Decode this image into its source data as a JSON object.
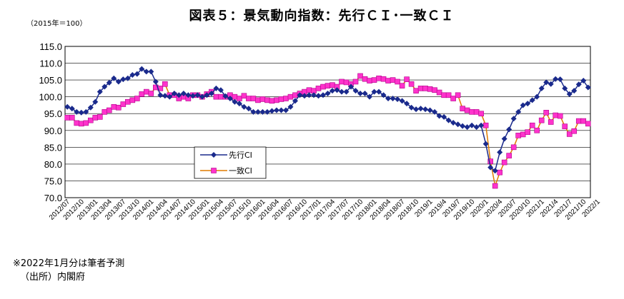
{
  "chart_data": {
    "type": "line",
    "title": "図表５：景気動向指数：先行ＣＩ･一致ＣＩ",
    "unit_note": "（2015年＝100）",
    "ylim": [
      70.0,
      115.0
    ],
    "yticks": [
      "70.0",
      "75.0",
      "80.0",
      "85.0",
      "90.0",
      "95.0",
      "100.0",
      "105.0",
      "110.0",
      "115.0"
    ],
    "xtick_labels": [
      "2012/07",
      "2012/10",
      "2013/01",
      "2013/04",
      "2013/07",
      "2013/10",
      "2014/01",
      "2014/04",
      "2014/07",
      "2014/10",
      "2015/01",
      "2015/04",
      "2015/07",
      "2015/10",
      "2016/01",
      "2016/04",
      "2016/07",
      "2016/10",
      "2017/01",
      "2017/04",
      "2017/07",
      "2017/10",
      "2018/01",
      "2018/04",
      "2018/07",
      "2018/10",
      "2019/1",
      "2019/4",
      "2019/7",
      "2019/10",
      "2020/1",
      "2020/4",
      "2020/7",
      "2020/10",
      "2021/1",
      "2021/4",
      "2021/7",
      "2021/10",
      "2022/1"
    ],
    "legend_position": "center-left",
    "series": [
      {
        "name": "先行CI",
        "color": "#1a2a8c",
        "marker": "diamond",
        "values": [
          97.0,
          96.5,
          95.5,
          95.3,
          95.5,
          96.8,
          98.5,
          101.5,
          103.0,
          104.2,
          105.5,
          104.5,
          105.2,
          105.5,
          106.5,
          106.8,
          108.3,
          107.5,
          107.5,
          104.5,
          100.5,
          100.3,
          100.0,
          101.0,
          100.5,
          101.0,
          100.5,
          100.3,
          100.5,
          100.0,
          100.5,
          101.0,
          102.5,
          102.0,
          100.2,
          99.5,
          98.5,
          98.0,
          97.0,
          96.5,
          95.5,
          95.5,
          95.5,
          95.5,
          95.8,
          96.0,
          96.0,
          96.0,
          97.0,
          98.8,
          100.5,
          100.3,
          100.5,
          100.5,
          100.3,
          100.5,
          101.0,
          101.8,
          102.0,
          101.5,
          101.5,
          103.0,
          101.8,
          101.0,
          101.0,
          100.0,
          101.5,
          101.5,
          100.5,
          99.5,
          99.5,
          99.3,
          98.8,
          98.0,
          96.8,
          96.3,
          96.5,
          96.3,
          96.0,
          95.5,
          94.3,
          94.0,
          93.0,
          92.3,
          91.8,
          91.3,
          91.0,
          91.5,
          91.0,
          91.5,
          86.0,
          79.0,
          78.0,
          83.5,
          87.5,
          90.3,
          93.5,
          95.5,
          97.5,
          98.0,
          99.0,
          100.0,
          102.5,
          104.3,
          103.8,
          105.3,
          105.2,
          102.5,
          100.8,
          101.8,
          103.7,
          104.8,
          102.8
        ]
      },
      {
        "name": "一致CI",
        "color": "#ff33cc",
        "marker": "square",
        "values": [
          93.8,
          93.8,
          92.2,
          92.0,
          92.2,
          93.0,
          93.8,
          94.0,
          95.5,
          96.0,
          97.0,
          96.8,
          97.8,
          98.5,
          99.0,
          99.5,
          100.8,
          101.5,
          101.0,
          102.8,
          102.5,
          103.8,
          100.5,
          100.5,
          99.5,
          100.0,
          99.5,
          100.5,
          100.5,
          100.0,
          100.8,
          101.5,
          100.0,
          100.0,
          100.0,
          100.5,
          100.0,
          99.5,
          100.3,
          99.5,
          99.5,
          99.0,
          99.3,
          99.0,
          98.8,
          99.0,
          99.3,
          99.5,
          100.0,
          100.5,
          101.0,
          101.5,
          102.0,
          101.8,
          102.5,
          103.0,
          103.3,
          103.5,
          103.0,
          104.5,
          104.3,
          103.8,
          104.5,
          106.2,
          105.3,
          104.8,
          105.0,
          105.5,
          105.3,
          104.8,
          105.0,
          104.5,
          103.3,
          105.2,
          103.8,
          101.8,
          102.5,
          102.5,
          102.3,
          102.0,
          101.3,
          100.5,
          100.5,
          99.5,
          100.5,
          96.5,
          96.0,
          95.5,
          95.5,
          95.0,
          91.5,
          80.8,
          73.5,
          77.5,
          80.5,
          82.5,
          85.0,
          88.5,
          88.8,
          89.5,
          91.5,
          90.0,
          93.0,
          95.3,
          92.5,
          94.5,
          94.3,
          91.2,
          88.9,
          89.8,
          92.8,
          92.8,
          92.0
        ]
      }
    ]
  },
  "footnotes": {
    "note": "※2022年1月分は筆者予測",
    "source": "（出所）内閣府"
  }
}
